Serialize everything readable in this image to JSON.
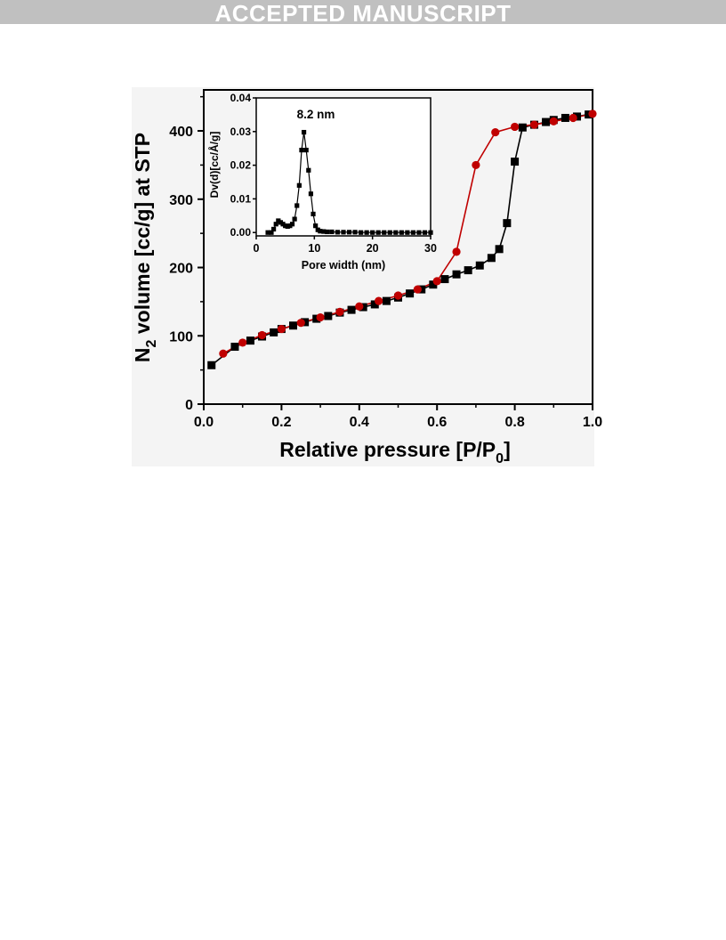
{
  "banner": {
    "text": "ACCEPTED MANUSCRIPT"
  },
  "colors": {
    "desorption": "#c00000",
    "adsorption": "#000000",
    "banner_bg": "#c0c0c0"
  },
  "chart_data": [
    {
      "type": "line",
      "role": "main",
      "xlabel": "Relative pressure [P/P",
      "xlabel_sub": "0",
      "xlabel_end": "]",
      "ylabel_prefix": "N",
      "ylabel_sub": "2",
      "ylabel_rest": " volume [cc/g] at STP",
      "xlim": [
        0.0,
        1.0
      ],
      "ylim": [
        0,
        460
      ],
      "xticks": [
        0.0,
        0.2,
        0.4,
        0.6,
        0.8,
        1.0
      ],
      "xtick_labels": [
        "0.0",
        "0.2",
        "0.4",
        "0.6",
        "0.8",
        "1.0"
      ],
      "yticks": [
        0,
        100,
        200,
        300,
        400
      ],
      "ytick_labels": [
        "0",
        "100",
        "200",
        "300",
        "400"
      ],
      "grid": false,
      "series": [
        {
          "marker": "square",
          "color": "#000000",
          "x": [
            0.02,
            0.08,
            0.12,
            0.15,
            0.18,
            0.2,
            0.23,
            0.26,
            0.29,
            0.32,
            0.35,
            0.38,
            0.41,
            0.44,
            0.47,
            0.5,
            0.53,
            0.56,
            0.59,
            0.62,
            0.65,
            0.68,
            0.71,
            0.74,
            0.76,
            0.78,
            0.8,
            0.82,
            0.85,
            0.88,
            0.9,
            0.93,
            0.96,
            0.99
          ],
          "y": [
            57,
            84,
            93,
            99,
            105,
            110,
            115,
            120,
            125,
            129,
            134,
            138,
            142,
            146,
            151,
            156,
            162,
            168,
            175,
            183,
            190,
            196,
            203,
            214,
            227,
            265,
            355,
            405,
            409,
            413,
            416,
            419,
            421,
            424
          ]
        },
        {
          "marker": "circle",
          "color": "#c00000",
          "x": [
            0.05,
            0.1,
            0.15,
            0.2,
            0.25,
            0.3,
            0.35,
            0.4,
            0.45,
            0.5,
            0.55,
            0.6,
            0.65,
            0.7,
            0.75,
            0.8,
            0.85,
            0.9,
            0.95,
            1.0
          ],
          "y": [
            74,
            90,
            101,
            110,
            119,
            127,
            135,
            143,
            151,
            159,
            168,
            180,
            223,
            350,
            398,
            406,
            409,
            414,
            419,
            425
          ]
        }
      ]
    },
    {
      "type": "line",
      "role": "inset",
      "xlabel": "Pore width (nm)",
      "ylabel": "Dv(d)[cc/Å/g]",
      "xlim": [
        0,
        30
      ],
      "ylim": [
        -0.001,
        0.04
      ],
      "xticks": [
        0,
        10,
        20,
        30
      ],
      "xtick_labels": [
        "0",
        "10",
        "20",
        "30"
      ],
      "yticks": [
        0.0,
        0.01,
        0.02,
        0.03,
        0.04
      ],
      "ytick_labels": [
        "0.00",
        "0.01",
        "0.02",
        "0.03",
        "0.04"
      ],
      "annotation": {
        "text": "8.2 nm",
        "x": 8.2,
        "y": 0.0345
      },
      "series": [
        {
          "marker": "square",
          "color": "#000000",
          "x": [
            2.0,
            2.6,
            3.0,
            3.4,
            3.8,
            4.2,
            4.6,
            5.0,
            5.4,
            5.8,
            6.2,
            6.6,
            7.0,
            7.4,
            7.8,
            8.2,
            8.6,
            9.0,
            9.4,
            9.8,
            10.2,
            10.6,
            11.0,
            11.6,
            12.2,
            13.0,
            14.0,
            15.0,
            16.0,
            17.0,
            18.0,
            19.0,
            20.0,
            21.0,
            22.0,
            23.0,
            24.0,
            25.0,
            26.0,
            27.0,
            28.0,
            29.0,
            30.0
          ],
          "y": [
            0.0,
            0.0,
            0.001,
            0.0025,
            0.0035,
            0.003,
            0.0025,
            0.002,
            0.0018,
            0.002,
            0.0025,
            0.004,
            0.008,
            0.014,
            0.0245,
            0.0298,
            0.0245,
            0.0185,
            0.0115,
            0.0055,
            0.002,
            0.0008,
            0.0004,
            0.0003,
            0.0002,
            0.0002,
            0.0001,
            0.0001,
            0.0001,
            0.0001,
            0.0,
            0.0,
            0.0,
            0.0,
            0.0,
            0.0,
            0.0,
            0.0,
            0.0,
            0.0,
            0.0,
            0.0,
            0.0
          ]
        }
      ]
    }
  ]
}
